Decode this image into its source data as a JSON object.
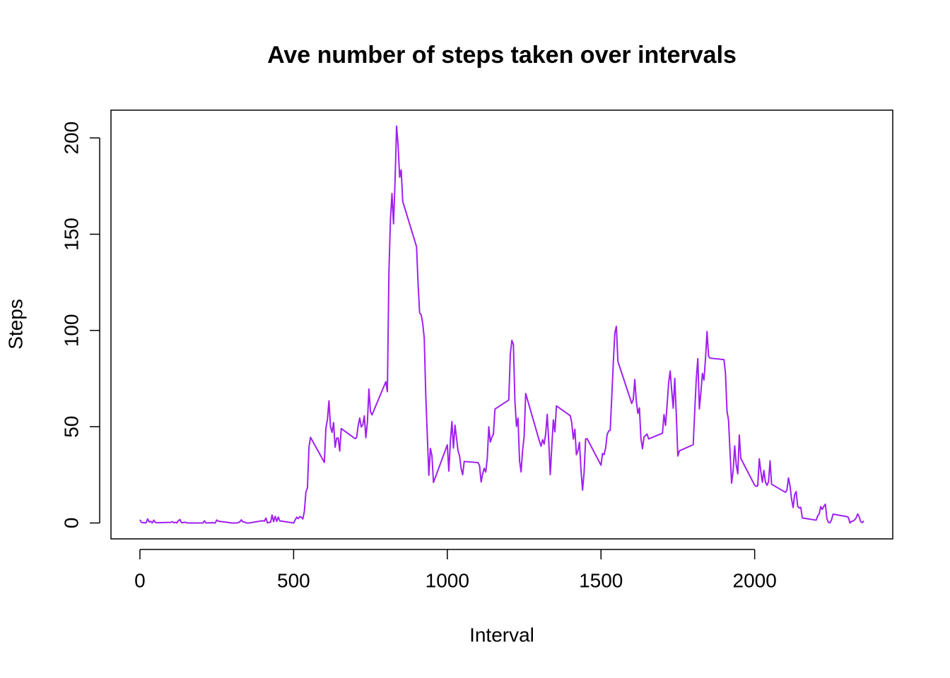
{
  "chart_data": {
    "type": "line",
    "title": "Ave number of steps taken over intervals",
    "x_label": "Interval",
    "y_label": "Steps",
    "xlim": [
      -94.2,
      2449.2
    ],
    "ylim": [
      -8.25,
      214.42
    ],
    "xticks": [
      0,
      500,
      1000,
      1500,
      2000
    ],
    "yticks": [
      0,
      50,
      100,
      150,
      200
    ],
    "x": [
      0,
      5,
      10,
      15,
      20,
      25,
      30,
      35,
      40,
      45,
      50,
      55,
      100,
      105,
      110,
      115,
      120,
      125,
      130,
      135,
      140,
      145,
      150,
      155,
      200,
      205,
      210,
      215,
      220,
      225,
      230,
      235,
      240,
      245,
      250,
      255,
      300,
      305,
      310,
      315,
      320,
      325,
      330,
      335,
      340,
      345,
      350,
      355,
      400,
      405,
      410,
      415,
      420,
      425,
      430,
      435,
      440,
      445,
      450,
      455,
      500,
      505,
      510,
      515,
      520,
      525,
      530,
      535,
      540,
      545,
      550,
      555,
      600,
      605,
      610,
      615,
      620,
      625,
      630,
      635,
      640,
      645,
      650,
      655,
      700,
      705,
      710,
      715,
      720,
      725,
      730,
      735,
      740,
      745,
      750,
      755,
      800,
      805,
      810,
      815,
      820,
      825,
      830,
      835,
      840,
      845,
      850,
      855,
      900,
      905,
      910,
      915,
      920,
      925,
      930,
      935,
      940,
      945,
      950,
      955,
      1000,
      1005,
      1010,
      1015,
      1020,
      1025,
      1030,
      1035,
      1040,
      1045,
      1050,
      1055,
      1100,
      1105,
      1110,
      1115,
      1120,
      1125,
      1130,
      1135,
      1140,
      1145,
      1150,
      1155,
      1200,
      1205,
      1210,
      1215,
      1220,
      1225,
      1230,
      1235,
      1240,
      1245,
      1250,
      1255,
      1300,
      1305,
      1310,
      1315,
      1320,
      1325,
      1330,
      1335,
      1340,
      1345,
      1350,
      1355,
      1400,
      1405,
      1410,
      1415,
      1420,
      1425,
      1430,
      1435,
      1440,
      1445,
      1450,
      1455,
      1500,
      1505,
      1510,
      1515,
      1520,
      1525,
      1530,
      1535,
      1540,
      1545,
      1550,
      1555,
      1600,
      1605,
      1610,
      1615,
      1620,
      1625,
      1630,
      1635,
      1640,
      1645,
      1650,
      1655,
      1700,
      1705,
      1710,
      1715,
      1720,
      1725,
      1730,
      1735,
      1740,
      1745,
      1750,
      1755,
      1800,
      1805,
      1810,
      1815,
      1820,
      1825,
      1830,
      1835,
      1840,
      1845,
      1850,
      1855,
      1900,
      1905,
      1910,
      1915,
      1920,
      1925,
      1930,
      1935,
      1940,
      1945,
      1950,
      1955,
      2000,
      2005,
      2010,
      2015,
      2020,
      2025,
      2030,
      2035,
      2040,
      2045,
      2050,
      2055,
      2100,
      2105,
      2110,
      2115,
      2120,
      2125,
      2130,
      2135,
      2140,
      2145,
      2150,
      2155,
      2200,
      2205,
      2210,
      2215,
      2220,
      2225,
      2230,
      2235,
      2240,
      2245,
      2250,
      2255,
      2300,
      2305,
      2310,
      2315,
      2320,
      2325,
      2330,
      2335,
      2340,
      2345,
      2350,
      2355
    ],
    "series": [
      {
        "name": "Steps",
        "color": "#a020f0",
        "values": [
          1.72,
          0.34,
          0.13,
          0.15,
          0.08,
          2.09,
          0.53,
          0.87,
          0,
          1.47,
          0.3,
          0.13,
          0.32,
          0.68,
          0.15,
          0.34,
          0,
          1.11,
          1.83,
          0.17,
          0.17,
          0.38,
          0.26,
          0,
          0,
          0,
          1.13,
          0,
          0,
          0.13,
          0,
          0.23,
          0,
          0,
          1.55,
          0.94,
          0,
          0,
          0,
          0,
          0.21,
          0.62,
          1.62,
          0.58,
          0.49,
          0.08,
          0,
          0,
          1.19,
          0.94,
          2.57,
          0,
          0.34,
          0.36,
          4.11,
          0.66,
          3.49,
          0.83,
          3.11,
          1.11,
          0,
          1.57,
          3,
          2.25,
          3.32,
          2.96,
          2.09,
          6.06,
          16.02,
          18.34,
          39.45,
          44.49,
          31.49,
          49.26,
          53.77,
          63.45,
          49.96,
          47.08,
          52.15,
          39.34,
          44.02,
          44.17,
          37.36,
          49.04,
          43.81,
          44.38,
          50.51,
          54.51,
          49.92,
          50.98,
          55.68,
          44.32,
          52.26,
          69.55,
          57.85,
          56.15,
          73.38,
          68.21,
          129.43,
          157.53,
          171.15,
          155.4,
          177.3,
          206.17,
          195.92,
          179.57,
          183.4,
          167.02,
          143.45,
          124.04,
          109.11,
          108.11,
          103.72,
          95.96,
          66.21,
          45.23,
          24.79,
          38.75,
          34.98,
          21.06,
          40.57,
          26.98,
          42.42,
          52.66,
          38.92,
          50.79,
          44.28,
          37.42,
          34.7,
          28.34,
          25.09,
          31.94,
          31.36,
          29.68,
          21.32,
          25.55,
          28.38,
          26.47,
          33.43,
          49.98,
          42.04,
          44.6,
          46.04,
          59.19,
          63.87,
          87.7,
          94.85,
          92.77,
          63.4,
          50.17,
          54.47,
          32.42,
          26.53,
          37.74,
          45.06,
          67.28,
          42.34,
          39.89,
          43.26,
          40.98,
          46.25,
          56.43,
          42.75,
          25.13,
          39.96,
          53.55,
          47.32,
          60.81,
          55.75,
          51.96,
          43.58,
          48.7,
          35.47,
          37.55,
          41.85,
          27.51,
          17.11,
          26.08,
          43.62,
          43.77,
          30.02,
          36.07,
          35.49,
          38.85,
          45.96,
          47.75,
          48.13,
          65.32,
          82.91,
          98.66,
          102.11,
          83.96,
          62.13,
          64.13,
          74.55,
          63.17,
          56.91,
          59.77,
          43.87,
          38.57,
          44.66,
          45.45,
          46.21,
          43.68,
          46.62,
          56.3,
          50.72,
          61.23,
          72.72,
          78.94,
          68.94,
          59.66,
          75.09,
          56.51,
          34.77,
          37.45,
          40.68,
          58.02,
          74.7,
          85.32,
          59.26,
          67.77,
          77.7,
          74.25,
          85.34,
          99.45,
          86.58,
          85.6,
          84.87,
          77.83,
          58.04,
          53.36,
          36.32,
          20.72,
          27.4,
          40.02,
          30.21,
          25.55,
          45.66,
          33.53,
          19.62,
          19.02,
          19.34,
          33.34,
          26.81,
          21.17,
          27.3,
          21.34,
          19.55,
          21.32,
          32.3,
          20.15,
          15.94,
          17.23,
          23.45,
          19.25,
          12.45,
          8.02,
          14.66,
          16.3,
          8.68,
          7.79,
          8.13,
          2.62,
          1.45,
          3.68,
          4.81,
          8.51,
          7.08,
          8.7,
          9.75,
          2.21,
          0.32,
          0.11,
          1.6,
          4.6,
          3.3,
          2.85,
          0,
          0.83,
          0.96,
          1.58,
          2.6,
          4.7,
          3.3,
          0.64,
          0.23,
          1.08
        ]
      }
    ]
  }
}
